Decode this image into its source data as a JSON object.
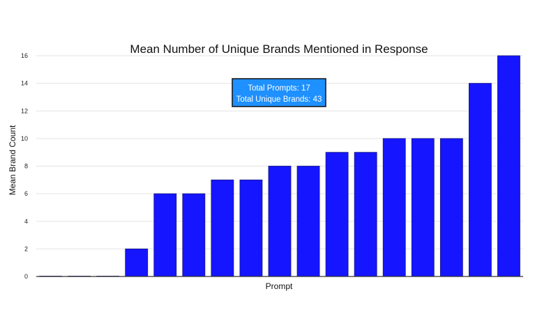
{
  "chart_data": {
    "type": "bar",
    "title": "Mean Number of Unique Brands Mentioned in Response",
    "xlabel": "Prompt",
    "ylabel": "Mean Brand Count",
    "categories": [
      "",
      "",
      "",
      "",
      "",
      "",
      "",
      "",
      "",
      "",
      "",
      "",
      "",
      "",
      "",
      "",
      ""
    ],
    "values": [
      0,
      0,
      0,
      2,
      6,
      6,
      7,
      7,
      8,
      8,
      9,
      9,
      10,
      10,
      10,
      14,
      16
    ],
    "ylim": [
      0,
      16
    ],
    "yticks": [
      "0",
      "2",
      "4",
      "6",
      "8",
      "10",
      "12",
      "14",
      "16"
    ],
    "grid": true,
    "bar_color": "#1515ff",
    "annotation": {
      "line1": "Total Prompts: 17",
      "line2": "Total Unique Brands: 43"
    }
  }
}
